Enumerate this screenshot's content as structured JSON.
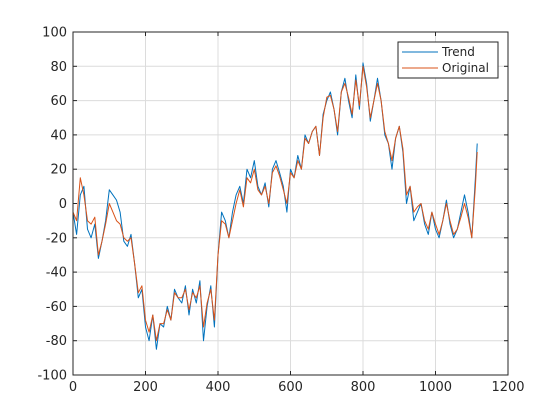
{
  "chart_data": {
    "type": "line",
    "title": "",
    "xlabel": "",
    "ylabel": "",
    "xlim": [
      0,
      1200
    ],
    "ylim": [
      -100,
      100
    ],
    "x_ticks": [
      0,
      200,
      400,
      600,
      800,
      1000,
      1200
    ],
    "y_ticks": [
      -100,
      -80,
      -60,
      -40,
      -20,
      0,
      20,
      40,
      60,
      80,
      100
    ],
    "grid": true,
    "legend_position": "top-right",
    "series": [
      {
        "name": "Trend",
        "color": "#0072BD",
        "x": [
          0,
          10,
          20,
          30,
          40,
          50,
          60,
          70,
          80,
          90,
          100,
          110,
          120,
          130,
          140,
          150,
          160,
          170,
          180,
          190,
          200,
          210,
          220,
          230,
          240,
          250,
          260,
          270,
          280,
          290,
          300,
          310,
          320,
          330,
          340,
          350,
          360,
          370,
          380,
          390,
          400,
          410,
          420,
          430,
          440,
          450,
          460,
          470,
          480,
          490,
          500,
          510,
          520,
          530,
          540,
          550,
          560,
          570,
          580,
          590,
          600,
          610,
          620,
          630,
          640,
          650,
          660,
          670,
          680,
          690,
          700,
          710,
          720,
          730,
          740,
          750,
          760,
          770,
          780,
          790,
          800,
          810,
          820,
          830,
          840,
          850,
          860,
          870,
          880,
          890,
          900,
          910,
          920,
          930,
          940,
          950,
          960,
          970,
          980,
          990,
          1000,
          1010,
          1020,
          1030,
          1040,
          1050,
          1060,
          1070,
          1080,
          1090,
          1100,
          1110,
          1115
        ],
        "values": [
          -5,
          -18,
          5,
          10,
          -15,
          -20,
          -12,
          -32,
          -22,
          -10,
          8,
          5,
          2,
          -5,
          -22,
          -25,
          -18,
          -35,
          -55,
          -50,
          -72,
          -80,
          -65,
          -85,
          -70,
          -72,
          -60,
          -68,
          -50,
          -55,
          -58,
          -48,
          -65,
          -50,
          -58,
          -45,
          -80,
          -60,
          -48,
          -72,
          -30,
          -5,
          -10,
          -20,
          -5,
          5,
          10,
          0,
          20,
          15,
          25,
          10,
          5,
          12,
          -2,
          20,
          25,
          18,
          10,
          -5,
          20,
          15,
          28,
          20,
          40,
          35,
          42,
          45,
          28,
          52,
          60,
          65,
          55,
          40,
          65,
          73,
          60,
          50,
          75,
          55,
          82,
          70,
          48,
          60,
          73,
          60,
          40,
          35,
          20,
          38,
          45,
          30,
          0,
          10,
          -10,
          -5,
          0,
          -12,
          -18,
          -5,
          -15,
          -20,
          -10,
          2,
          -12,
          -20,
          -15,
          -5,
          5,
          -5,
          -20,
          15,
          35
        ]
      },
      {
        "name": "Original",
        "color": "#D95319",
        "x": [
          0,
          10,
          20,
          30,
          40,
          50,
          60,
          70,
          80,
          90,
          100,
          110,
          120,
          130,
          140,
          150,
          160,
          170,
          180,
          190,
          200,
          210,
          220,
          230,
          240,
          250,
          260,
          270,
          280,
          290,
          300,
          310,
          320,
          330,
          340,
          350,
          360,
          370,
          380,
          390,
          400,
          410,
          420,
          430,
          440,
          450,
          460,
          470,
          480,
          490,
          500,
          510,
          520,
          530,
          540,
          550,
          560,
          570,
          580,
          590,
          600,
          610,
          620,
          630,
          640,
          650,
          660,
          670,
          680,
          690,
          700,
          710,
          720,
          730,
          740,
          750,
          760,
          770,
          780,
          790,
          800,
          810,
          820,
          830,
          840,
          850,
          860,
          870,
          880,
          890,
          900,
          910,
          920,
          930,
          940,
          950,
          960,
          970,
          980,
          990,
          1000,
          1010,
          1020,
          1030,
          1040,
          1050,
          1060,
          1070,
          1080,
          1090,
          1100,
          1110,
          1115
        ],
        "values": [
          -5,
          -10,
          15,
          5,
          -10,
          -12,
          -8,
          -30,
          -22,
          -12,
          0,
          -5,
          -10,
          -12,
          -20,
          -22,
          -20,
          -35,
          -52,
          -48,
          -68,
          -75,
          -65,
          -80,
          -70,
          -70,
          -62,
          -68,
          -52,
          -55,
          -55,
          -50,
          -62,
          -52,
          -55,
          -48,
          -72,
          -58,
          -50,
          -68,
          -30,
          -10,
          -12,
          -20,
          -10,
          0,
          8,
          -2,
          15,
          12,
          20,
          8,
          5,
          10,
          0,
          18,
          22,
          16,
          8,
          0,
          18,
          15,
          25,
          20,
          38,
          35,
          42,
          45,
          28,
          50,
          62,
          63,
          55,
          42,
          65,
          70,
          62,
          52,
          72,
          57,
          80,
          68,
          50,
          60,
          70,
          60,
          42,
          35,
          25,
          38,
          45,
          32,
          5,
          10,
          -5,
          -2,
          0,
          -10,
          -15,
          -5,
          -12,
          -18,
          -10,
          0,
          -10,
          -18,
          -15,
          -8,
          0,
          -8,
          -20,
          10,
          30
        ]
      }
    ]
  }
}
